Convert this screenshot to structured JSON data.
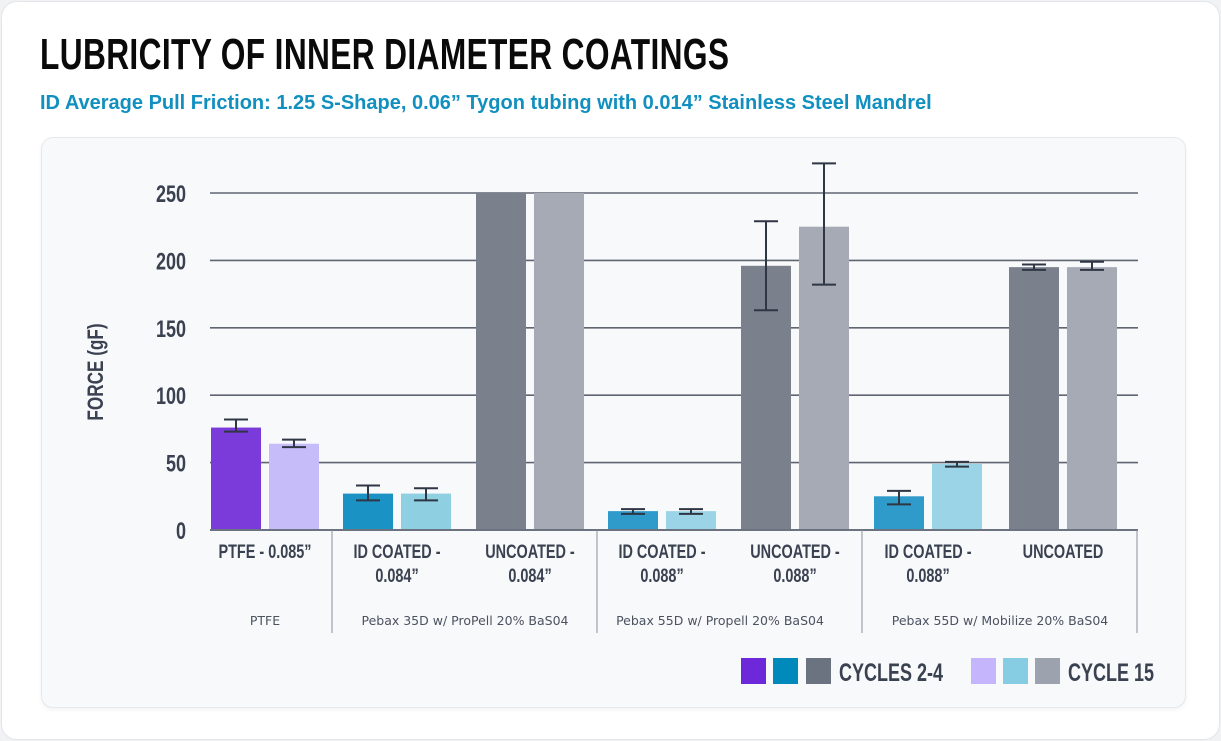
{
  "title": "LUBRICITY OF INNER DIAMETER COATINGS",
  "subtitle": "ID Average Pull Friction: 1.25 S-Shape, 0.06” Tygon tubing with 0.014” Stainless Steel Mandrel",
  "chart_data": {
    "type": "bar",
    "ylabel": "FORCE (gF)",
    "ylim": [
      0,
      250
    ],
    "yticks": [
      "0",
      "50",
      "100",
      "150",
      "200",
      "250"
    ],
    "grid": true,
    "legend_position": "bottom-right",
    "categories": [
      [
        "PTFE - 0.085”"
      ],
      [
        "ID COATED -",
        "0.084”"
      ],
      [
        "UNCOATED -",
        "0.084”"
      ],
      [
        "ID COATED -",
        "0.088”"
      ],
      [
        "UNCOATED -",
        "0.088”"
      ],
      [
        "ID COATED -",
        "0.088”"
      ],
      [
        "UNCOATED"
      ]
    ],
    "groups": [
      {
        "label": "PTFE",
        "categories": [
          0
        ]
      },
      {
        "label": "Pebax 35D w/ ProPell 20% BaS04",
        "categories": [
          1,
          2
        ]
      },
      {
        "label": "Pebax 55D w/ Propell 20% BaS04",
        "categories": [
          3,
          4
        ]
      },
      {
        "label": "Pebax 55D w/ Mobilize 20% BaS04",
        "categories": [
          5,
          6
        ]
      }
    ],
    "series": [
      {
        "name": "CYCLES 2-4",
        "values": [
          76,
          27,
          250,
          14,
          196,
          25,
          195
        ],
        "error_low": [
          73,
          22,
          null,
          12,
          163,
          19,
          193
        ],
        "error_high": [
          82,
          33,
          null,
          15.5,
          229,
          29,
          197
        ],
        "colors": [
          "#7b3bdb",
          "#1a93c4",
          "#7a808c",
          "#2f9bcb",
          "#7a808c",
          "#2f9bcb",
          "#7a808c"
        ]
      },
      {
        "name": "CYCLE 15",
        "values": [
          64,
          27,
          250,
          14,
          225,
          49,
          195
        ],
        "error_low": [
          61.5,
          22,
          null,
          12,
          182,
          47,
          193
        ],
        "error_high": [
          67,
          31,
          null,
          15.5,
          272,
          50.5,
          199
        ],
        "colors": [
          "#c6bcfa",
          "#8ecfe2",
          "#a5aab5",
          "#9ad4e6",
          "#a5aab5",
          "#9ad4e6",
          "#a5aab5"
        ]
      }
    ],
    "legend": [
      {
        "label": "CYCLES 2-4",
        "swatches": [
          "#6d28d9",
          "#0089bb",
          "#6b7280"
        ]
      },
      {
        "label": "CYCLE 15",
        "swatches": [
          "#c4b5fd",
          "#86cde3",
          "#9ca3af"
        ]
      }
    ]
  }
}
